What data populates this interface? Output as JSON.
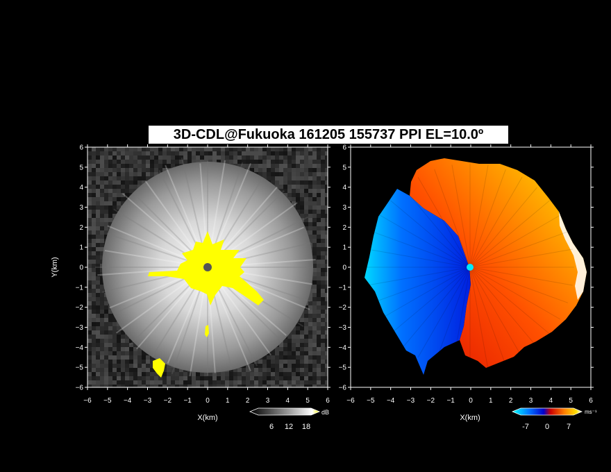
{
  "title": "3D-CDL@Fukuoka 161205 155737 PPI EL=10.0º",
  "chart_data": [
    {
      "type": "heatmap",
      "panel": "reflectivity",
      "xlabel": "X(km)",
      "ylabel": "Y(km)",
      "xlim": [
        -6,
        6
      ],
      "ylim": [
        -6,
        6
      ],
      "xticks": [
        "-6",
        "-5",
        "-4",
        "-3",
        "-2",
        "-1",
        "0",
        "1",
        "2",
        "3",
        "4",
        "5",
        "6"
      ],
      "yticks": [
        "-6",
        "-5",
        "-4",
        "-3",
        "-2",
        "-1",
        "0",
        "1",
        "2",
        "3",
        "4",
        "5",
        "6"
      ],
      "grid": false,
      "colorbar": {
        "unit": "dB",
        "ticks": [
          "6",
          "12",
          "18"
        ],
        "range": [
          0,
          22
        ],
        "colors": [
          "#000000",
          "#444444",
          "#888888",
          "#cccccc",
          "#ffffff",
          "#ffff00"
        ]
      },
      "radar_center": [
        0,
        0
      ],
      "echo_radius_km": 5.2,
      "saturated_region_color": "#ffff00"
    },
    {
      "type": "heatmap",
      "panel": "doppler_velocity",
      "xlabel": "X(km)",
      "ylabel": "",
      "xlim": [
        -6,
        6
      ],
      "ylim": [
        -6,
        6
      ],
      "xticks": [
        "-6",
        "-5",
        "-4",
        "-3",
        "-2",
        "-1",
        "0",
        "1",
        "2",
        "3",
        "4",
        "5",
        "6"
      ],
      "yticks": [
        "-6",
        "-5",
        "-4",
        "-3",
        "-2",
        "-1",
        "0",
        "1",
        "2",
        "3",
        "4",
        "5",
        "6"
      ],
      "grid": false,
      "colorbar": {
        "unit": "ms⁻¹",
        "ticks": [
          "-7",
          "0",
          "7"
        ],
        "range": [
          -9,
          9
        ],
        "colors": [
          "#00ffff",
          "#0070ff",
          "#0000cc",
          "#cc0000",
          "#ff6000",
          "#ffd000",
          "#ffffff"
        ]
      },
      "radar_center": [
        0,
        0
      ],
      "echo_radius_km": 5.5,
      "approaching_side": "west",
      "receding_side": "east"
    }
  ]
}
